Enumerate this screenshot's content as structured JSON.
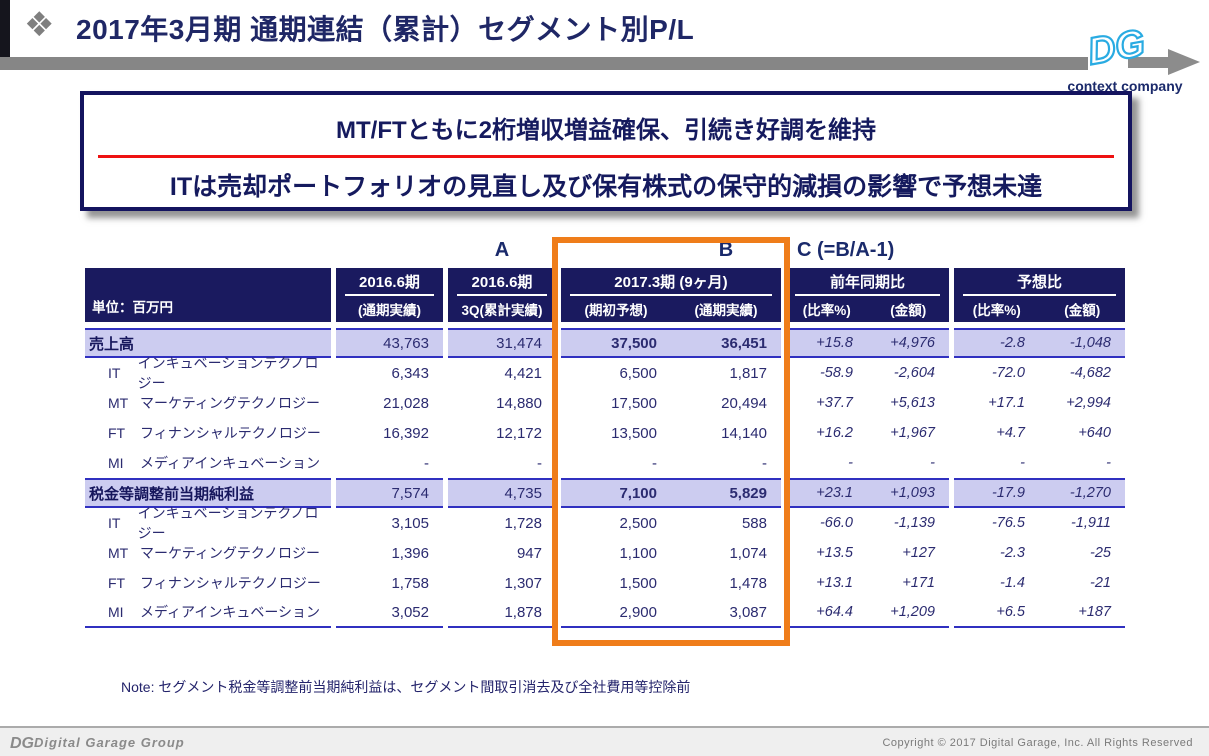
{
  "page": {
    "title": "2017年3月期 通期連結（累計）セグメント別P/L"
  },
  "logo": {
    "monogram": "DG",
    "caption": "context company"
  },
  "headline": {
    "line1": "MT/FTともに2桁増収増益確保、引続き好調を維持",
    "line2": "ITは売却ポートフォリオの見直し及び保有株式の保守的減損の影響で予想未達"
  },
  "markers": {
    "a": "A",
    "b": "B",
    "c": "C (=B/A-1)"
  },
  "table": {
    "header": {
      "unit_label": "単位：百万円",
      "groups": [
        {
          "title": "2016.6期",
          "subs": [
            "(通期実績)"
          ]
        },
        {
          "title": "2016.6期",
          "subs": [
            "3Q(累計実績)"
          ]
        },
        {
          "title": "2017.3期 (9ヶ月)",
          "subs": [
            "(期初予想)",
            "(通期実績)"
          ]
        },
        {
          "title": "前年同期比",
          "subs": [
            "(比率%)",
            "(金額)"
          ]
        },
        {
          "title": "予想比",
          "subs": [
            "(比率%)",
            "(金額)"
          ]
        }
      ]
    },
    "rows": [
      {
        "type": "total",
        "label": "売上高",
        "values": [
          "43,763",
          "31,474",
          "37,500",
          "36,451",
          "+15.8",
          "+4,976",
          "-2.8",
          "-1,048"
        ]
      },
      {
        "type": "segment",
        "code": "IT",
        "name": "インキュベーションテクノロジー",
        "values": [
          "6,343",
          "4,421",
          "6,500",
          "1,817",
          "-58.9",
          "-2,604",
          "-72.0",
          "-4,682"
        ]
      },
      {
        "type": "segment",
        "code": "MT",
        "name": "マーケティングテクノロジー",
        "values": [
          "21,028",
          "14,880",
          "17,500",
          "20,494",
          "+37.7",
          "+5,613",
          "+17.1",
          "+2,994"
        ]
      },
      {
        "type": "segment",
        "code": "FT",
        "name": "フィナンシャルテクノロジー",
        "values": [
          "16,392",
          "12,172",
          "13,500",
          "14,140",
          "+16.2",
          "+1,967",
          "+4.7",
          "+640"
        ]
      },
      {
        "type": "segment",
        "code": "MI",
        "name": "メディアインキュベーション",
        "values": [
          "-",
          "-",
          "-",
          "-",
          "-",
          "-",
          "-",
          "-"
        ]
      },
      {
        "type": "total",
        "label": "税金等調整前当期純利益",
        "values": [
          "7,574",
          "4,735",
          "7,100",
          "5,829",
          "+23.1",
          "+1,093",
          "-17.9",
          "-1,270"
        ]
      },
      {
        "type": "segment",
        "code": "IT",
        "name": "インキュベーションテクノロジー",
        "values": [
          "3,105",
          "1,728",
          "2,500",
          "588",
          "-66.0",
          "-1,139",
          "-76.5",
          "-1,911"
        ]
      },
      {
        "type": "segment",
        "code": "MT",
        "name": "マーケティングテクノロジー",
        "values": [
          "1,396",
          "947",
          "1,100",
          "1,074",
          "+13.5",
          "+127",
          "-2.3",
          "-25"
        ]
      },
      {
        "type": "segment",
        "code": "FT",
        "name": "フィナンシャルテクノロジー",
        "values": [
          "1,758",
          "1,307",
          "1,500",
          "1,478",
          "+13.1",
          "+171",
          "-1.4",
          "-21"
        ]
      },
      {
        "type": "segment",
        "code": "MI",
        "name": "メディアインキュベーション",
        "values": [
          "3,052",
          "1,878",
          "2,900",
          "3,087",
          "+64.4",
          "+1,209",
          "+6.5",
          "+187"
        ]
      }
    ]
  },
  "note": "Note: セグメント税金等調整前当期純利益は、セグメント間取引消去及び全社費用等控除前",
  "footer": {
    "brand": "Digital Garage Group",
    "copyright": "Copyright © 2017 Digital Garage, Inc. All Rights Reserved"
  },
  "colors": {
    "navy": "#1a1a5f",
    "highlight_lavender": "#ccccf0",
    "accent_orange": "#ef7d1a",
    "accent_red": "#ee1111",
    "line_blue": "#3030c0",
    "gray_bar": "#868686",
    "logo_cyan": "#29abe2"
  }
}
